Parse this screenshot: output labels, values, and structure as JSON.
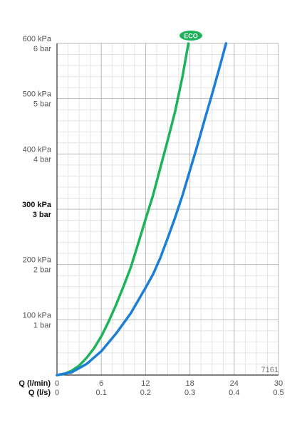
{
  "chart_data": {
    "type": "line",
    "code": "7161",
    "x_axis": {
      "label_primary": "Q (l/min)",
      "label_secondary": "Q (l/s)",
      "range": [
        0,
        30
      ],
      "major_ticks": [
        0,
        6,
        12,
        18,
        24,
        30
      ],
      "labels_primary": [
        "0",
        "6",
        "12",
        "18",
        "24",
        "30"
      ],
      "labels_secondary": [
        "0",
        "0.1",
        "0.2",
        "0.3",
        "0.4",
        "0.5"
      ],
      "minor_step": 1.5
    },
    "y_axis": {
      "unit": "kPa",
      "range": [
        0,
        600
      ],
      "major_ticks": [
        100,
        200,
        300,
        400,
        500,
        600
      ],
      "labels_kpa": [
        "100 kPa",
        "200 kPa",
        "300 kPa",
        "400 kPa",
        "500 kPa",
        "600 kPa"
      ],
      "labels_bar": [
        "1 bar",
        "2 bar",
        "3 bar",
        "4 bar",
        "5 bar",
        "6 bar"
      ],
      "highlighted_tick": 300,
      "minor_step": 20
    },
    "grid": true,
    "series": [
      {
        "name": "ECO",
        "color": "#1eb35a",
        "x": [
          0,
          1,
          2,
          3,
          4,
          5,
          6,
          7,
          8,
          9,
          10,
          11,
          12,
          13,
          14,
          15,
          16,
          17,
          17.8
        ],
        "y": [
          0,
          2,
          8,
          17,
          31,
          48,
          70,
          97,
          127,
          160,
          195,
          238,
          282,
          325,
          375,
          425,
          477,
          540,
          600
        ]
      },
      {
        "color": "#1b7fd8",
        "x": [
          0,
          2,
          4,
          6,
          8,
          10,
          12,
          13,
          14,
          15,
          16,
          17,
          18,
          19,
          20,
          21,
          22,
          22.9
        ],
        "y": [
          0,
          5,
          20,
          43,
          75,
          112,
          158,
          182,
          212,
          248,
          285,
          325,
          370,
          415,
          462,
          508,
          556,
          600
        ]
      }
    ],
    "colors": {
      "major_grid": "#b9b9b9",
      "minor_grid": "#e4e4e4",
      "eco_badge": "#1eb35a"
    }
  }
}
